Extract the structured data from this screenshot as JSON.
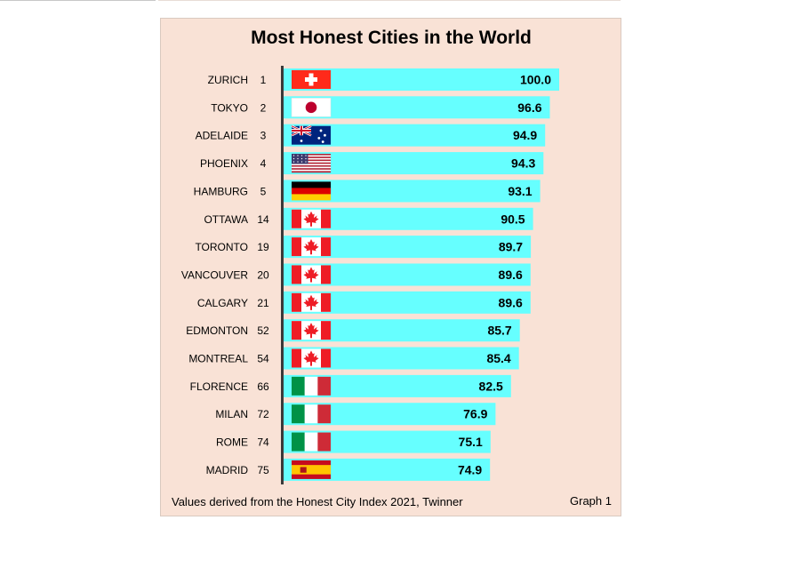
{
  "chart_data": {
    "type": "bar",
    "orientation": "horizontal",
    "title": "Most Honest Cities in the World",
    "categories": [
      "ZURICH",
      "TOKYO",
      "ADELAIDE",
      "PHOENIX",
      "HAMBURG",
      "OTTAWA",
      "TORONTO",
      "VANCOUVER",
      "CALGARY",
      "EDMONTON",
      "MONTREAL",
      "FLORENCE",
      "MILAN",
      "ROME",
      "MADRID"
    ],
    "ranks": [
      "1",
      "2",
      "3",
      "4",
      "5",
      "14",
      "19",
      "20",
      "21",
      "52",
      "54",
      "66",
      "72",
      "74",
      "75"
    ],
    "values": [
      100.0,
      96.6,
      94.9,
      94.3,
      93.1,
      90.5,
      89.7,
      89.6,
      89.6,
      85.7,
      85.4,
      82.5,
      76.9,
      75.1,
      74.9
    ],
    "value_labels": [
      "100.0",
      "96.6",
      "94.9",
      "94.3",
      "93.1",
      "90.5",
      "89.7",
      "89.6",
      "89.6",
      "85.7",
      "85.4",
      "82.5",
      "76.9",
      "75.1",
      "74.9"
    ],
    "flags": [
      "switzerland-flag-icon",
      "japan-flag-icon",
      "australia-flag-icon",
      "usa-flag-icon",
      "germany-flag-icon",
      "canada-flag-icon",
      "canada-flag-icon",
      "canada-flag-icon",
      "canada-flag-icon",
      "canada-flag-icon",
      "canada-flag-icon",
      "italy-flag-icon",
      "italy-flag-icon",
      "italy-flag-icon",
      "spain-flag-icon"
    ],
    "xlim": [
      0,
      100
    ],
    "grid": false,
    "legend": "none",
    "bar_color": "#66ffff",
    "background_color": "#f9e2d6",
    "axis_color": "#3a3a3a",
    "footnote": "Values derived from the Honest City Index 2021, Twinner",
    "graph_label": "Graph 1"
  }
}
